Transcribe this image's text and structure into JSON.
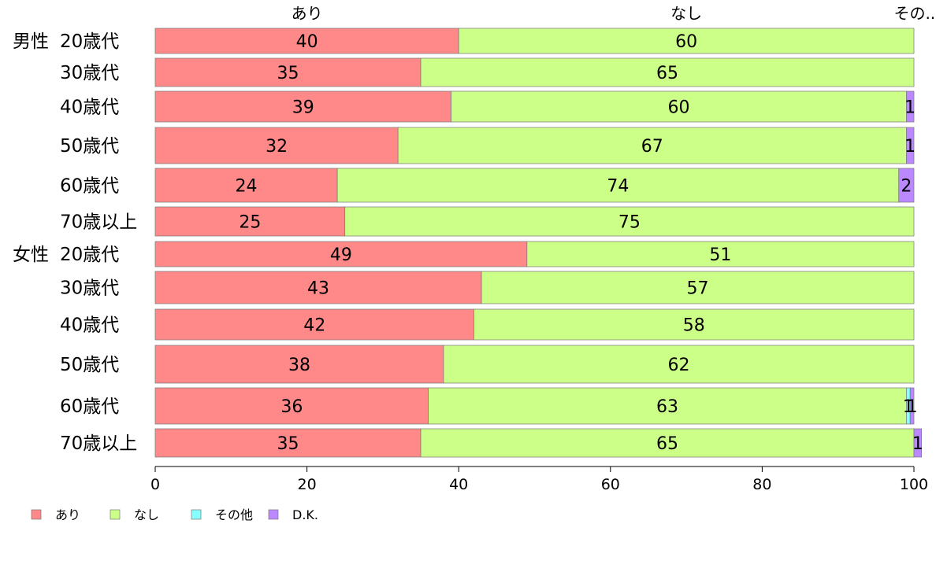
{
  "chart_data": {
    "type": "bar",
    "orientation": "horizontal",
    "stacked": true,
    "groups": [
      {
        "label": "男性",
        "categories": [
          "20歳代",
          "30歳代",
          "40歳代",
          "50歳代",
          "60歳代",
          "70歳以上"
        ]
      },
      {
        "label": "女性",
        "categories": [
          "20歳代",
          "30歳代",
          "40歳代",
          "50歳代",
          "60歳代",
          "70歳以上"
        ]
      }
    ],
    "series": [
      {
        "name": "あり",
        "color": "#ff8888",
        "values": [
          40,
          35,
          39,
          32,
          24,
          25,
          49,
          43,
          42,
          38,
          36,
          35
        ]
      },
      {
        "name": "なし",
        "color": "#ccff88",
        "values": [
          60,
          65,
          60,
          67,
          74,
          75,
          51,
          57,
          58,
          62,
          63,
          65
        ]
      },
      {
        "name": "その他",
        "color": "#88ffff",
        "values": [
          0,
          0,
          0,
          0,
          0,
          0,
          0,
          0,
          0,
          0,
          0.5,
          0
        ]
      },
      {
        "name": "D.K.",
        "color": "#bb88ff",
        "values": [
          0,
          0,
          1,
          1,
          2,
          0,
          0,
          0,
          0,
          0,
          0.5,
          1
        ]
      }
    ],
    "data_labels": [
      [
        "40",
        "60",
        "",
        ""
      ],
      [
        "35",
        "65",
        "",
        ""
      ],
      [
        "39",
        "60",
        "",
        "1"
      ],
      [
        "32",
        "67",
        "",
        "1"
      ],
      [
        "24",
        "74",
        "",
        "2"
      ],
      [
        "25",
        "75",
        "",
        ""
      ],
      [
        "49",
        "51",
        "",
        ""
      ],
      [
        "43",
        "57",
        "",
        ""
      ],
      [
        "42",
        "58",
        "",
        ""
      ],
      [
        "38",
        "62",
        "",
        ""
      ],
      [
        "36",
        "63",
        "1",
        "1"
      ],
      [
        "35",
        "65",
        "",
        "1"
      ]
    ],
    "top_labels": [
      "あり",
      "なし",
      "その..."
    ],
    "xlim": [
      0,
      100
    ],
    "xticks": [
      0,
      20,
      40,
      60,
      80,
      100
    ],
    "legend_position": "bottom-left"
  }
}
